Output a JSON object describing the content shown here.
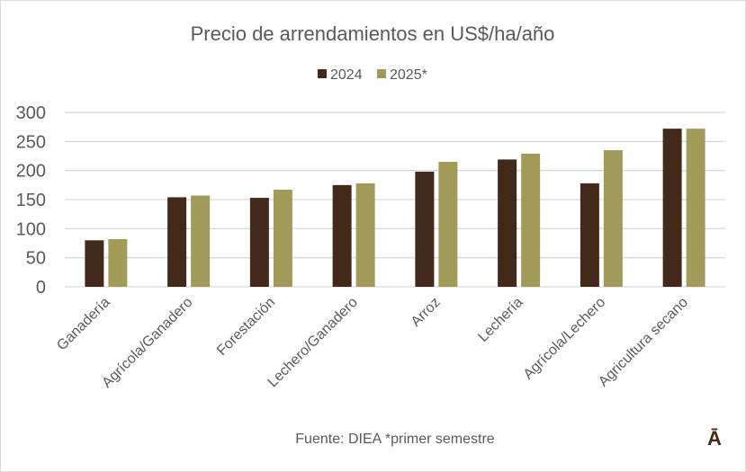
{
  "chart_data": {
    "type": "bar",
    "title": "Precio de arrendamientos en US$/ha/año",
    "categories": [
      "Ganadería",
      "Agrícola/Ganadero",
      "Forestación",
      "Lechero/Ganadero",
      "Arroz",
      "Lechería",
      "Agrícola/Lechero",
      "Agricultura secano"
    ],
    "series": [
      {
        "name": "2024",
        "color": "#43291a",
        "values": [
          80,
          154,
          153,
          175,
          198,
          219,
          178,
          272
        ]
      },
      {
        "name": "2025*",
        "color": "#a29a58",
        "values": [
          82,
          157,
          167,
          178,
          215,
          229,
          235,
          272
        ]
      }
    ],
    "ylim": [
      0,
      300
    ],
    "yticks": [
      0,
      50,
      100,
      150,
      200,
      250,
      300
    ],
    "grid": true,
    "legend_position": "top",
    "gridline_color": "#d9d9d9"
  },
  "footer": {
    "source": "Fuente: DIEA *primer semestre",
    "logo_text": "Ā"
  }
}
